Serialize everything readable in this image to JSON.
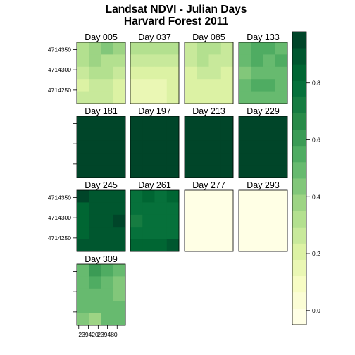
{
  "chart_data": {
    "type": "heatmap",
    "title": [
      "Landsat NDVI - Julian Days",
      "Harvard Forest 2011"
    ],
    "xlabel": "",
    "ylabel": "",
    "x_ticks": [
      "239420",
      "239480"
    ],
    "y_ticks": [
      "4714350",
      "4714300",
      "4714250"
    ],
    "colorbar": {
      "min": -0.05,
      "max": 0.98,
      "ticks": [
        {
          "label": "0.0",
          "value": 0.0
        },
        {
          "label": "0.2",
          "value": 0.2
        },
        {
          "label": "0.4",
          "value": 0.4
        },
        {
          "label": "0.6",
          "value": 0.6
        },
        {
          "label": "0.8",
          "value": 0.8
        }
      ],
      "palette": [
        "#ffffe5",
        "#fbfdd5",
        "#f7fcc4",
        "#eaf7b4",
        "#dcf2a4",
        "#c8e99b",
        "#b3e08f",
        "#9dd484",
        "#82c77a",
        "#67ba6f",
        "#4fac62",
        "#3b9b55",
        "#288a48",
        "#167c41",
        "#06713b",
        "#006633",
        "#00572f",
        "#004529"
      ]
    },
    "panels": [
      {
        "title": "Day 005",
        "values": [
          [
            0.35,
            0.4,
            0.46,
            0.4
          ],
          [
            0.31,
            0.37,
            0.33,
            0.31
          ],
          [
            0.26,
            0.31,
            0.3,
            0.27
          ],
          [
            0.2,
            0.26,
            0.25,
            0.22
          ],
          [
            0.24,
            0.28,
            0.26,
            0.23
          ]
        ]
      },
      {
        "title": "Day 037",
        "values": [
          [
            0.32,
            0.33,
            0.31,
            0.3
          ],
          [
            0.25,
            0.26,
            0.25,
            0.24
          ],
          [
            0.21,
            0.22,
            0.21,
            0.2
          ],
          [
            0.16,
            0.17,
            0.16,
            0.18
          ],
          [
            0.15,
            0.14,
            0.17,
            0.19
          ]
        ]
      },
      {
        "title": "Day 085",
        "values": [
          [
            0.28,
            0.33,
            0.31,
            0.29
          ],
          [
            0.25,
            0.3,
            0.29,
            0.26
          ],
          [
            0.23,
            0.26,
            0.25,
            0.22
          ],
          [
            0.19,
            0.22,
            0.2,
            0.19
          ],
          [
            0.18,
            0.2,
            0.19,
            0.21
          ]
        ]
      },
      {
        "title": "Day 133",
        "values": [
          [
            0.49,
            0.53,
            0.53,
            0.51
          ],
          [
            0.51,
            0.53,
            0.47,
            0.53
          ],
          [
            0.46,
            0.51,
            0.52,
            0.48
          ],
          [
            0.49,
            0.53,
            0.53,
            0.48
          ],
          [
            0.47,
            0.5,
            0.52,
            0.49
          ]
        ]
      },
      {
        "title": "Day 181",
        "values": [
          [
            0.95,
            0.95,
            0.95,
            0.95
          ],
          [
            0.95,
            0.95,
            0.95,
            0.95
          ],
          [
            0.95,
            0.95,
            0.95,
            0.95
          ],
          [
            0.95,
            0.95,
            0.95,
            0.95
          ],
          [
            0.95,
            0.95,
            0.95,
            0.95
          ]
        ]
      },
      {
        "title": "Day 197",
        "values": [
          [
            0.95,
            0.95,
            0.95,
            0.95
          ],
          [
            0.95,
            0.95,
            0.95,
            0.95
          ],
          [
            0.98,
            0.95,
            0.95,
            0.95
          ],
          [
            0.95,
            0.95,
            0.95,
            0.95
          ],
          [
            0.95,
            0.95,
            0.95,
            0.95
          ]
        ]
      },
      {
        "title": "Day 213",
        "values": [
          [
            0.95,
            0.95,
            0.95,
            0.95
          ],
          [
            0.95,
            0.95,
            0.95,
            0.95
          ],
          [
            0.95,
            0.95,
            0.95,
            0.95
          ],
          [
            0.95,
            0.95,
            0.95,
            0.95
          ],
          [
            0.95,
            0.95,
            0.95,
            0.95
          ]
        ]
      },
      {
        "title": "Day 229",
        "values": [
          [
            0.95,
            0.95,
            0.95,
            0.95
          ],
          [
            0.95,
            0.95,
            0.95,
            0.95
          ],
          [
            0.95,
            0.95,
            0.95,
            0.95
          ],
          [
            0.95,
            0.95,
            0.95,
            0.95
          ],
          [
            0.95,
            0.95,
            0.95,
            0.95
          ]
        ]
      },
      {
        "title": "Day 245",
        "values": [
          [
            0.93,
            0.89,
            0.91,
            0.88
          ],
          [
            0.85,
            0.88,
            0.9,
            0.87
          ],
          [
            0.85,
            0.87,
            0.89,
            0.93
          ],
          [
            0.86,
            0.9,
            0.91,
            0.89
          ],
          [
            0.91,
            0.87,
            0.89,
            0.88
          ]
        ]
      },
      {
        "title": "Day 261",
        "values": [
          [
            0.8,
            0.81,
            0.8,
            0.81
          ],
          [
            0.8,
            0.78,
            0.78,
            0.79
          ],
          [
            0.75,
            0.76,
            0.76,
            0.78
          ],
          [
            0.76,
            0.78,
            0.77,
            0.79
          ],
          [
            0.82,
            0.81,
            0.82,
            0.89
          ]
        ]
      },
      {
        "title": "Day 277",
        "values": [
          [
            -0.02,
            -0.02,
            -0.02,
            -0.02
          ],
          [
            -0.02,
            -0.02,
            -0.02,
            -0.02
          ],
          [
            -0.02,
            -0.02,
            -0.02,
            -0.02
          ],
          [
            -0.02,
            -0.02,
            -0.04,
            -0.02
          ],
          [
            -0.02,
            -0.02,
            -0.02,
            -0.02
          ]
        ]
      },
      {
        "title": "Day 293",
        "values": [
          [
            -0.01,
            -0.01,
            -0.01,
            -0.01
          ],
          [
            -0.01,
            -0.01,
            -0.01,
            -0.01
          ],
          [
            -0.01,
            -0.01,
            -0.01,
            -0.01
          ],
          [
            -0.01,
            -0.01,
            -0.01,
            -0.01
          ],
          [
            -0.01,
            -0.01,
            -0.01,
            -0.01
          ]
        ]
      },
      {
        "title": "Day 309",
        "values": [
          [
            0.51,
            0.58,
            0.57,
            0.49
          ],
          [
            0.5,
            0.53,
            0.52,
            0.46
          ],
          [
            0.49,
            0.52,
            0.47,
            0.45
          ],
          [
            0.47,
            0.48,
            0.5,
            0.5
          ],
          [
            0.43,
            0.37,
            0.47,
            0.48
          ]
        ]
      }
    ]
  }
}
